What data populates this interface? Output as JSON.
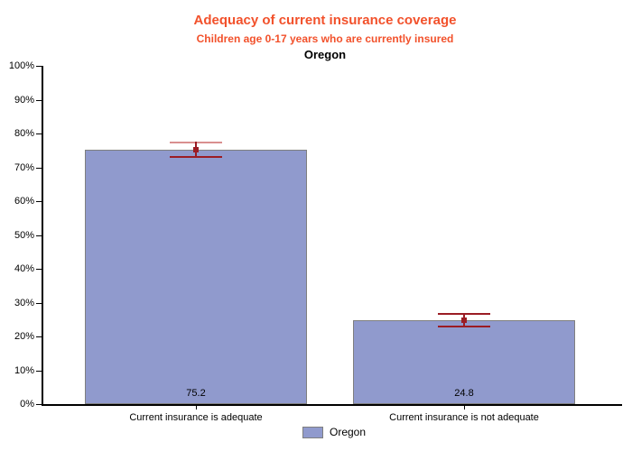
{
  "chart_data": {
    "type": "bar",
    "title": "Adequacy of current insurance coverage",
    "subtitle": "Children age 0-17 years who are currently insured",
    "location_line": "Oregon",
    "categories": [
      "Current insurance is adequate",
      "Current insurance is not adequate"
    ],
    "series": [
      {
        "name": "Oregon",
        "values": [
          75.2,
          24.8
        ],
        "value_labels": [
          "75.2",
          "24.8"
        ],
        "ci_low": [
          73.4,
          23.2
        ],
        "ci_high": [
          77.6,
          26.9
        ]
      }
    ],
    "xlabel": "",
    "ylabel": "",
    "ylim": [
      0,
      100
    ],
    "ytick_step": 10,
    "ytick_labels": [
      "0%",
      "10%",
      "20%",
      "30%",
      "40%",
      "50%",
      "60%",
      "70%",
      "80%",
      "90%",
      "100%"
    ],
    "grid": false,
    "legend": {
      "position": "bottom",
      "entries": [
        "Oregon"
      ]
    },
    "colors": {
      "title": "#F2512B",
      "subtitle": "#F2512B",
      "location_line": "#000000",
      "bar_fill": "#909ACD",
      "bar_border": "#7F7F7F",
      "error_dark": "#9B1C24",
      "error_upper_whisker_per_bar": [
        "#D98F8F",
        "#9B1C24"
      ],
      "axis": "#000000",
      "text": "#000000",
      "background": "#FFFFFF"
    }
  }
}
